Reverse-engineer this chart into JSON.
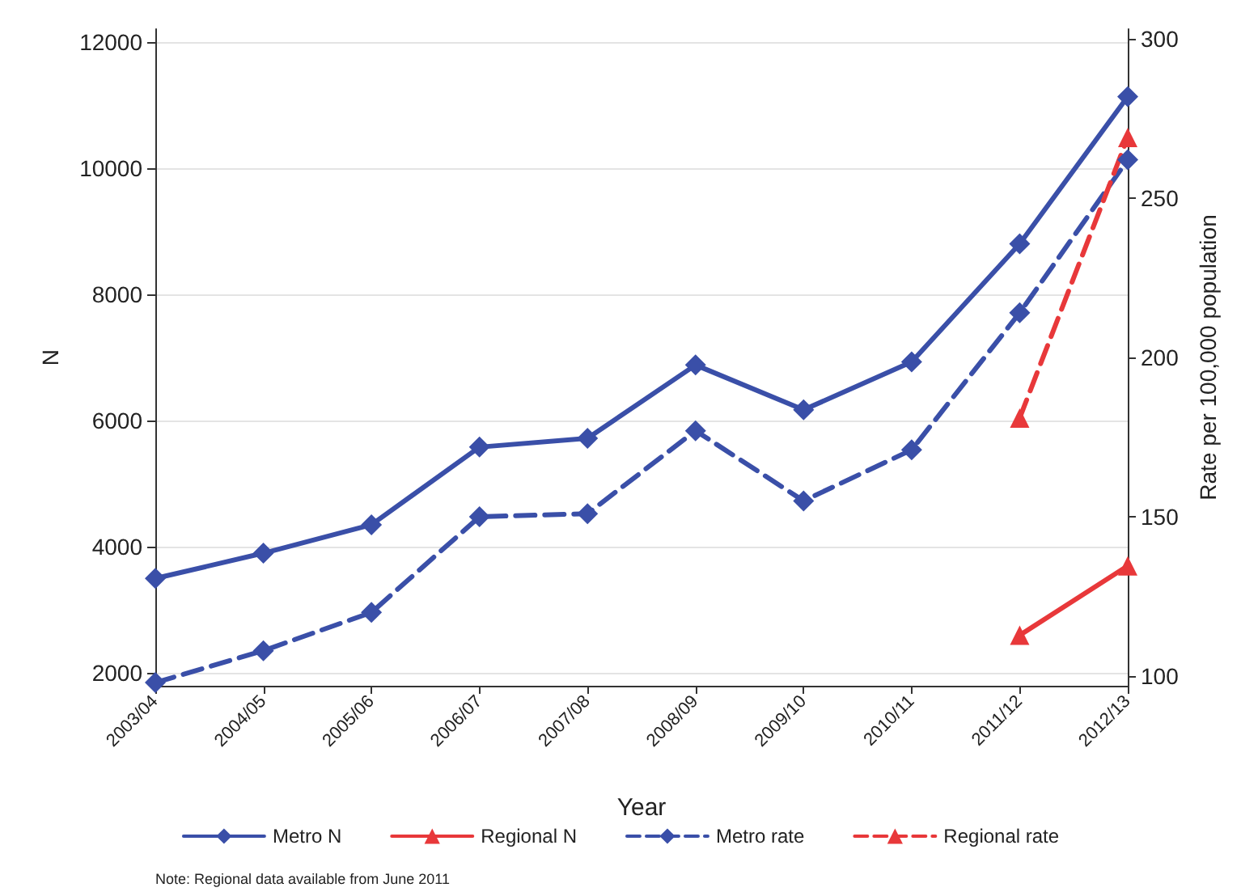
{
  "chart_data": {
    "type": "line",
    "xlabel": "Year",
    "ylabel": "N",
    "y2label": "Rate per 100,000 population",
    "categories": [
      "2003/04",
      "2004/05",
      "2005/06",
      "2006/07",
      "2007/08",
      "2008/09",
      "2009/10",
      "2010/11",
      "2011/12",
      "2012/13"
    ],
    "series": [
      {
        "name": "Metro N",
        "color": "#3a4fa8",
        "marker": "diamond",
        "line_style": "solid",
        "values": [
          3500,
          3900,
          4350,
          5580,
          5720,
          6880,
          6170,
          6930,
          8800,
          11130
        ]
      },
      {
        "name": "Regional N",
        "color": "#e8383a",
        "marker": "triangle",
        "line_style": "solid",
        "values": [
          null,
          null,
          null,
          null,
          null,
          null,
          null,
          null,
          2600,
          3700
        ]
      },
      {
        "name": "Metro rate",
        "color": "#3a4fa8",
        "marker": "diamond",
        "line_style": "dashed",
        "axis": "y2",
        "values": [
          98,
          108,
          120,
          150,
          151,
          177,
          155,
          171,
          214,
          262
        ]
      },
      {
        "name": "Regional rate",
        "color": "#e8383a",
        "marker": "triangle",
        "line_style": "dashed",
        "axis": "y2",
        "values": [
          null,
          null,
          null,
          null,
          null,
          null,
          null,
          null,
          181,
          269
        ]
      }
    ],
    "ylim": [
      1800,
      12200
    ],
    "yticks": [
      2000,
      4000,
      6000,
      8000,
      10000,
      12000
    ],
    "y2lim": [
      97,
      303
    ],
    "y2ticks": [
      100,
      150,
      200,
      250,
      300
    ],
    "grid": "y",
    "legend": "bottom",
    "annotations": [
      "Note: Regional data available from June 2011"
    ]
  }
}
